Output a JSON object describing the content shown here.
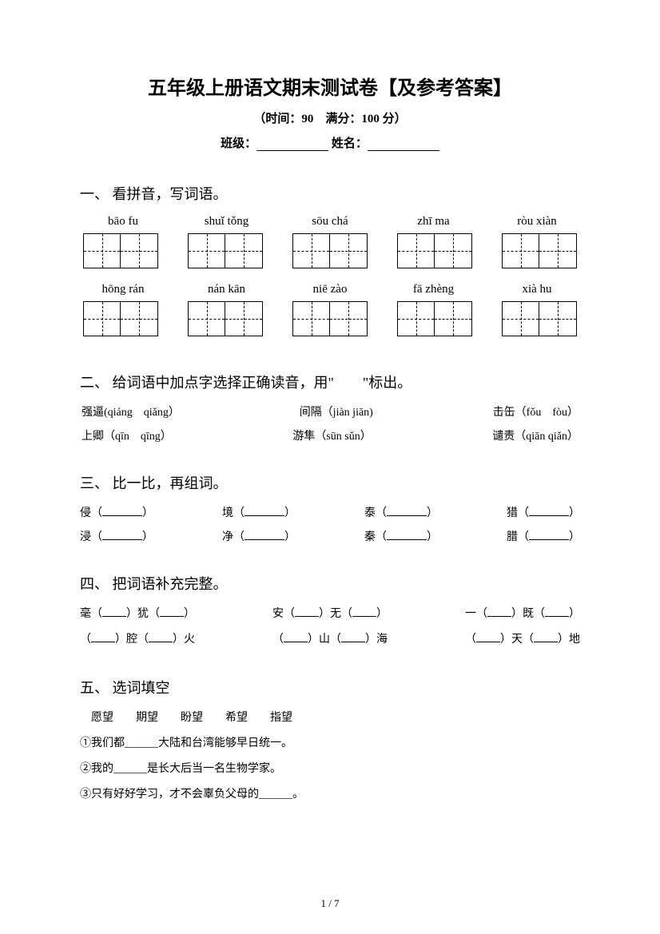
{
  "header": {
    "title": "五年级上册语文期末测试卷【及参考答案】",
    "subtitle": "（时间：90　满分：100 分）",
    "class_label": "班级：",
    "name_label": "姓名："
  },
  "section1": {
    "heading": "一、 看拼音，写词语。",
    "row1": [
      "bāo fu",
      "shuǐ tǒng",
      "sōu chá",
      "zhī ma",
      "ròu xiàn"
    ],
    "row2": [
      "hōng rán",
      "nán kān",
      "niē zào",
      "fā zhèng",
      "xià hu"
    ]
  },
  "section2": {
    "heading": "二、 给词语中加点字选择正确读音，用\"　　\"标出。",
    "items": [
      [
        "强逼(qiáng　qiǎng）",
        "间隔（jiàn jiān)",
        "击缶（fǒu　fòu）"
      ],
      [
        "上卿（qīn　qīng）",
        "游隼（sūn sǔn）",
        "谴责（qiān qiǎn）"
      ]
    ]
  },
  "section3": {
    "heading": "三、 比一比，再组词。",
    "rows": [
      [
        "侵（",
        "境（",
        "泰（",
        "猎（"
      ],
      [
        "浸（",
        "净（",
        "秦（",
        "腊（"
      ]
    ]
  },
  "section4": {
    "heading": "四、 把词语补充完整。",
    "rows": [
      [
        "毫（",
        "）犹（",
        "）",
        "安（",
        "）无（",
        "）",
        "一（",
        "）既（",
        "）"
      ],
      [
        "（",
        "）腔（",
        "）火",
        "（",
        "）山（",
        "）海",
        "（",
        "）天（",
        "）地"
      ]
    ]
  },
  "section5": {
    "heading": "五、 选词填空",
    "choices": "愿望　　期望　　盼望　　希望　　指望",
    "sentences": [
      "①我们都______大陆和台湾能够早日统一。",
      "②我的______是长大后当一名生物学家。",
      "③只有好好学习，才不会辜负父母的______。"
    ]
  },
  "page": "1 / 7"
}
